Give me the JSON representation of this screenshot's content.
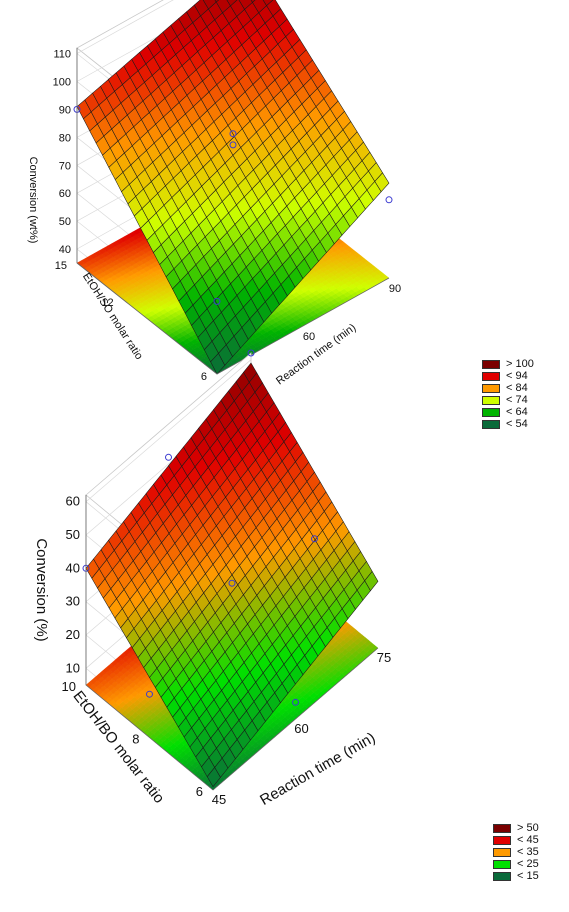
{
  "chart_data": [
    {
      "type": "surface3d",
      "zlabel": "Conversion (wt%)",
      "xlabel": "Reaction time (min)",
      "ylabel": "EtOH/SO molar ratio",
      "x_ticks": [
        "30",
        "60",
        "90"
      ],
      "y_ticks": [
        "6",
        "12",
        "15"
      ],
      "z_ticks": [
        "40",
        "50",
        "60",
        "70",
        "80",
        "90",
        "100",
        "110"
      ],
      "xlim": [
        30,
        90
      ],
      "ylim": [
        6,
        15
      ],
      "zlim": [
        35,
        112
      ],
      "surface_corners": {
        "t30_r6": 35,
        "t90_r6": 69,
        "t30_r15": 91,
        "t90_r15": 110
      },
      "points": [
        {
          "x": 30,
          "y": 15,
          "z": 90
        },
        {
          "x": 90,
          "y": 15,
          "z": 108
        },
        {
          "x": 60,
          "y": 10.5,
          "z": 84
        },
        {
          "x": 60,
          "y": 10.5,
          "z": 80
        },
        {
          "x": 30,
          "y": 6,
          "z": 61
        },
        {
          "x": 90,
          "y": 6,
          "z": 63
        }
      ],
      "legend": {
        "items": [
          {
            "label": "> 100",
            "color": "#7a0000"
          },
          {
            "label": "< 94",
            "color": "#e00000"
          },
          {
            "label": "< 84",
            "color": "#ff9a00"
          },
          {
            "label": "< 74",
            "color": "#cfff00"
          },
          {
            "label": "< 64",
            "color": "#00b400"
          },
          {
            "label": "< 54",
            "color": "#0a6a3a"
          }
        ]
      }
    },
    {
      "type": "surface3d",
      "zlabel": "Conversion (%)",
      "xlabel": "Reaction time (min)",
      "ylabel": "EtOH/BO molar ratio",
      "x_ticks": [
        "45",
        "60",
        "75"
      ],
      "y_ticks": [
        "6",
        "8",
        "10"
      ],
      "z_ticks": [
        "10",
        "20",
        "30",
        "40",
        "50",
        "60"
      ],
      "xlim": [
        45,
        75
      ],
      "ylim": [
        6,
        10
      ],
      "zlim": [
        5,
        62
      ],
      "surface_corners": {
        "t45_r6": 6,
        "t75_r6": 25,
        "t45_r10": 40,
        "t75_r10": 59
      },
      "points": [
        {
          "x": 45,
          "y": 10,
          "z": 40
        },
        {
          "x": 60,
          "y": 10,
          "z": 52
        },
        {
          "x": 75,
          "y": 10,
          "z": 62
        },
        {
          "x": 60,
          "y": 8,
          "z": 30
        },
        {
          "x": 45,
          "y": 8,
          "z": 18
        },
        {
          "x": 75,
          "y": 8,
          "z": 22
        },
        {
          "x": 60,
          "y": 6,
          "z": 10
        }
      ],
      "legend": {
        "items": [
          {
            "label": "> 50",
            "color": "#7a0000"
          },
          {
            "label": "< 45",
            "color": "#e00000"
          },
          {
            "label": "< 35",
            "color": "#ff9a00"
          },
          {
            "label": "< 25",
            "color": "#00e000"
          },
          {
            "label": "< 15",
            "color": "#0a6a3a"
          }
        ]
      }
    }
  ]
}
